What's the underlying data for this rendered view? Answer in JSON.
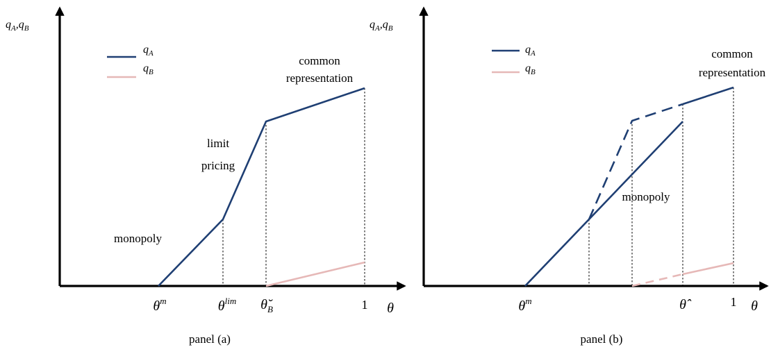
{
  "colors": {
    "q_a": "#1f3f73",
    "q_b": "#e6b8b7",
    "axis": "#000000"
  },
  "panel_a": {
    "y_axis_label": "q_A,q_B",
    "legend": {
      "q_a": "q_A",
      "q_b": "q_B"
    },
    "labels": {
      "monopoly": "monopoly",
      "limit_pricing_1": "limit",
      "limit_pricing_2": "pricing",
      "common_rep_1": "common",
      "common_rep_2": "representation"
    },
    "ticks": {
      "theta_m": "θ^m",
      "theta_lim": "θ^lim",
      "theta_b": "θ̆_B",
      "one": "1"
    },
    "x_axis_label": "θ",
    "caption": "panel (a)"
  },
  "panel_b": {
    "y_axis_label": "q_A,q_B",
    "legend": {
      "q_a": "q_A",
      "q_b": "q_B"
    },
    "labels": {
      "monopoly": "monopoly",
      "common_rep_1": "common",
      "common_rep_2": "representation"
    },
    "ticks": {
      "theta_m": "θ^m",
      "theta_hat": "θ̂",
      "one": "1"
    },
    "x_axis_label": "θ",
    "caption": "panel (b)"
  }
}
